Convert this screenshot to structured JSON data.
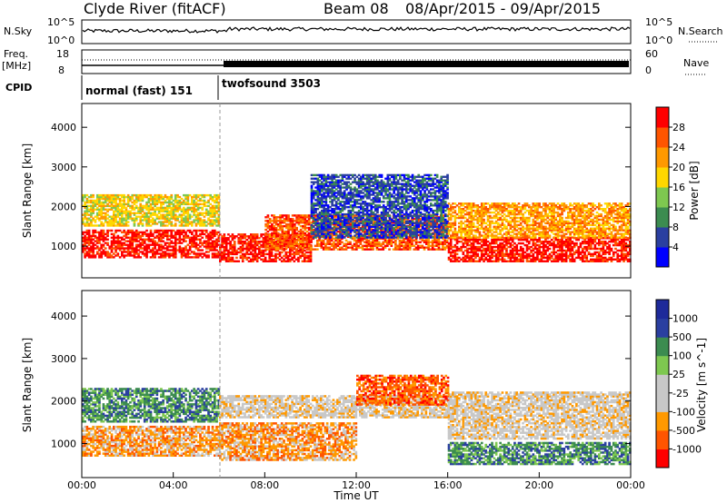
{
  "header": {
    "title": "Clyde River (fitACF)",
    "beam": "Beam 08",
    "date_range": "08/Apr/2015 - 09/Apr/2015"
  },
  "top_panels": {
    "nsky_label": "N.Sky",
    "nsky_ticks": [
      "10^5",
      "10^0"
    ],
    "nsearch_label": "N.Search",
    "nsearch_ticks": [
      "10^5",
      "10^0"
    ],
    "freq_label_line1": "Freq.",
    "freq_label_line2": "[MHz]",
    "freq_ticks": [
      "18",
      "8"
    ],
    "nave_label": "Nave",
    "nave_ticks": [
      "60",
      "0"
    ],
    "cpid_label": "CPID",
    "cpid_segments": [
      {
        "label": "normal (fast) 151",
        "start_hour": 0,
        "end_hour": 6
      },
      {
        "label": "twofsound 3503",
        "start_hour": 6,
        "end_hour": 24
      }
    ]
  },
  "colors": {
    "power_scale": [
      "#0000ff",
      "#2a3fa0",
      "#3c8c50",
      "#7ec850",
      "#ffd700",
      "#ff9900",
      "#ff5500",
      "#ff0000"
    ],
    "velocity_scale": [
      "#ff0000",
      "#ff5500",
      "#ff9900",
      "#c8c8c8",
      "#c8c8c8",
      "#7ec850",
      "#3c8c50",
      "#2a3fa0",
      "#1e2a9a"
    ]
  },
  "chart_data": [
    {
      "type": "heatmap",
      "name": "power",
      "ylabel": "Slant Range [km]",
      "y_ticks": [
        "1000",
        "2000",
        "3000",
        "4000"
      ],
      "ylim": [
        200,
        4600
      ],
      "xlim": [
        0,
        24
      ],
      "colorbar_label": "Power [dB]",
      "colorbar_ticks": [
        "4",
        "8",
        "12",
        "16",
        "20",
        "24",
        "28"
      ],
      "bands": [
        {
          "t0": 0,
          "t1": 6,
          "r0": 700,
          "r1": 1400,
          "level": 7
        },
        {
          "t0": 0,
          "t1": 6,
          "r0": 1500,
          "r1": 2300,
          "level": 4
        },
        {
          "t0": 6,
          "t1": 10,
          "r0": 600,
          "r1": 1300,
          "level": 7
        },
        {
          "t0": 8,
          "t1": 16,
          "r0": 900,
          "r1": 1800,
          "level": 6
        },
        {
          "t0": 10,
          "t1": 16,
          "r0": 1200,
          "r1": 2800,
          "level": 1
        },
        {
          "t0": 16,
          "t1": 24,
          "r0": 600,
          "r1": 1200,
          "level": 7
        },
        {
          "t0": 16,
          "t1": 24,
          "r0": 1200,
          "r1": 2100,
          "level": 5
        }
      ]
    },
    {
      "type": "heatmap",
      "name": "velocity",
      "ylabel": "Slant Range [km]",
      "y_ticks": [
        "1000",
        "2000",
        "3000",
        "4000"
      ],
      "ylim": [
        200,
        4600
      ],
      "xlim": [
        0,
        24
      ],
      "xlabel": "Time UT",
      "x_ticks": [
        "00:00",
        "04:00",
        "08:00",
        "12:00",
        "16:00",
        "20:00",
        "00:00"
      ],
      "colorbar_label": "Velocity [m s^-1]",
      "colorbar_ticks": [
        "1000",
        "500",
        "100",
        "25",
        "-25",
        "-100",
        "-500",
        "-1000"
      ],
      "bands": [
        {
          "t0": 0,
          "t1": 6,
          "r0": 700,
          "r1": 1400,
          "level": 2
        },
        {
          "t0": 0,
          "t1": 6,
          "r0": 1500,
          "r1": 2300,
          "level": 6
        },
        {
          "t0": 6,
          "t1": 12,
          "r0": 600,
          "r1": 1500,
          "level": 2
        },
        {
          "t0": 6,
          "t1": 16,
          "r0": 1600,
          "r1": 2100,
          "level": 3
        },
        {
          "t0": 12,
          "t1": 16,
          "r0": 1900,
          "r1": 2600,
          "level": 1
        },
        {
          "t0": 16,
          "t1": 24,
          "r0": 500,
          "r1": 1000,
          "level": 6
        },
        {
          "t0": 16,
          "t1": 24,
          "r0": 1100,
          "r1": 2200,
          "level": 3
        }
      ]
    }
  ]
}
